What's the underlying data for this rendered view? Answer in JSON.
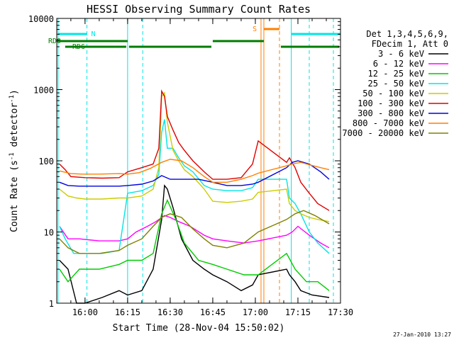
{
  "chart_data": {
    "type": "line",
    "title": "HESSI Observing Summary Count Rates",
    "xlabel": "Start Time (28-Nov-04 15:50:02)",
    "ylabel_main": "Count Rate (s",
    "ylabel_sup1": "-1",
    "ylabel_mid": " detector",
    "ylabel_sup2": "-1",
    "ylabel_end": ")",
    "yscale": "log",
    "ylim": [
      1,
      10000
    ],
    "xlim": [
      "15:50:02",
      "17:30:00"
    ],
    "x_ticks": [
      "16:00",
      "16:15",
      "16:30",
      "16:45",
      "17:00",
      "17:15",
      "17:30"
    ],
    "y_ticks": [
      "1",
      "10",
      "100",
      "1000",
      "10000"
    ],
    "legend_position": "right",
    "legend_header": [
      "Det 1,3,4,5,6,9,",
      "FDecim 1, Att 0"
    ],
    "footer_date": "27-Jan-2010 13:27",
    "flags": [
      {
        "label": "RD0",
        "color": "#007c00"
      },
      {
        "label": "RD6",
        "color": "#007c00"
      },
      {
        "label": "N",
        "color": "#00e5e5"
      },
      {
        "label": "S",
        "color": "#ff8000"
      }
    ],
    "series": [
      {
        "name": "3 - 6 keV",
        "color": "#000000",
        "x": [
          "15:51",
          "15:54",
          "15:57",
          "16:00",
          "16:06",
          "16:12",
          "16:15",
          "16:20",
          "16:24",
          "16:27",
          "16:28",
          "16:29",
          "16:31",
          "16:34",
          "16:38",
          "16:42",
          "16:45",
          "16:50",
          "16:55",
          "16:59",
          "17:01",
          "17:11",
          "17:12",
          "17:14",
          "17:16",
          "17:20",
          "17:26"
        ],
        "y": [
          4,
          3,
          1,
          1,
          1.2,
          1.5,
          1.3,
          1.5,
          3,
          15,
          45,
          40,
          22,
          8,
          4,
          3,
          2.5,
          2,
          1.5,
          1.8,
          2.5,
          3,
          2.5,
          2,
          1.5,
          1.3,
          1.2
        ]
      },
      {
        "name": "6 - 12 keV",
        "color": "#ff00ff",
        "x": [
          "15:51",
          "15:54",
          "15:58",
          "16:05",
          "16:12",
          "16:15",
          "16:18",
          "16:22",
          "16:25",
          "16:28",
          "16:30",
          "16:33",
          "16:37",
          "16:42",
          "16:45",
          "16:50",
          "16:56",
          "17:01",
          "17:11",
          "17:13",
          "17:15",
          "17:19",
          "17:23",
          "17:26"
        ],
        "y": [
          12,
          8,
          8,
          7.5,
          7.5,
          8,
          10,
          12,
          14,
          17,
          16,
          14,
          12,
          9,
          8,
          7.5,
          7,
          7.5,
          9,
          10,
          12,
          9,
          7,
          6
        ]
      },
      {
        "name": "12 - 25 keV",
        "color": "#00cc00",
        "x": [
          "15:51",
          "15:54",
          "15:58",
          "16:05",
          "16:12",
          "16:15",
          "16:20",
          "16:24",
          "16:27",
          "16:29",
          "16:32",
          "16:35",
          "16:40",
          "16:45",
          "16:50",
          "16:56",
          "17:01",
          "17:11",
          "17:14",
          "17:18",
          "17:22",
          "17:26"
        ],
        "y": [
          3,
          2,
          3,
          3,
          3.5,
          4,
          4,
          5,
          18,
          28,
          15,
          7,
          4,
          3.5,
          3,
          2.5,
          2.5,
          5,
          3,
          2,
          2,
          1.5
        ]
      },
      {
        "name": "25 - 50 keV",
        "color": "#00e5e5",
        "x": [
          "15:51",
          "15:53",
          "15:56",
          "16:00",
          "16:06",
          "16:12",
          "16:15",
          "16:20",
          "16:24",
          "16:26",
          "16:27",
          "16:28",
          "16:29",
          "16:31",
          "16:33",
          "16:35",
          "16:38",
          "16:42",
          "16:45",
          "16:50",
          "16:55",
          "16:59",
          "17:01",
          "17:11",
          "17:12",
          "17:14",
          "17:16",
          "17:19",
          "17:22",
          "17:26"
        ],
        "y": [
          12,
          8,
          5,
          5,
          5,
          5.5,
          35,
          38,
          45,
          65,
          250,
          380,
          150,
          150,
          110,
          85,
          70,
          45,
          40,
          38,
          38,
          42,
          55,
          55,
          30,
          25,
          18,
          10,
          7,
          5
        ]
      },
      {
        "name": "50 - 100 keV",
        "color": "#cccc00",
        "x": [
          "15:51",
          "15:54",
          "15:57",
          "16:00",
          "16:06",
          "16:12",
          "16:15",
          "16:20",
          "16:24",
          "16:26",
          "16:27",
          "16:28",
          "16:29",
          "16:31",
          "16:33",
          "16:35",
          "16:38",
          "16:42",
          "16:45",
          "16:50",
          "16:55",
          "16:59",
          "17:01",
          "17:11",
          "17:12",
          "17:14",
          "17:16",
          "17:19",
          "17:22",
          "17:26"
        ],
        "y": [
          40,
          32,
          30,
          29,
          29,
          30,
          30,
          32,
          40,
          80,
          800,
          900,
          350,
          140,
          100,
          75,
          60,
          40,
          27,
          26,
          27,
          29,
          36,
          40,
          25,
          20,
          18,
          16,
          15,
          14
        ]
      },
      {
        "name": "100 - 300 keV",
        "color": "#e00000",
        "x": [
          "15:51",
          "15:53",
          "15:55",
          "16:00",
          "16:06",
          "16:12",
          "16:15",
          "16:20",
          "16:24",
          "16:26",
          "16:27",
          "16:28",
          "16:29",
          "16:31",
          "16:33",
          "16:35",
          "16:38",
          "16:42",
          "16:45",
          "16:50",
          "16:55",
          "16:59",
          "17:01",
          "17:11",
          "17:12",
          "17:14",
          "17:16",
          "17:19",
          "17:22",
          "17:26"
        ],
        "y": [
          90,
          75,
          60,
          58,
          57,
          58,
          70,
          80,
          90,
          150,
          950,
          800,
          420,
          270,
          180,
          140,
          100,
          70,
          55,
          55,
          58,
          90,
          190,
          95,
          110,
          80,
          50,
          35,
          25,
          20
        ]
      },
      {
        "name": "300 - 800 keV",
        "color": "#0000e0",
        "x": [
          "15:51",
          "15:54",
          "15:58",
          "16:00",
          "16:06",
          "16:12",
          "16:15",
          "16:20",
          "16:24",
          "16:27",
          "16:30",
          "16:35",
          "16:40",
          "16:45",
          "16:50",
          "16:55",
          "16:59",
          "17:01",
          "17:11",
          "17:13",
          "17:15",
          "17:19",
          "17:23",
          "17:26"
        ],
        "y": [
          50,
          45,
          44,
          44,
          44,
          44,
          45,
          47,
          52,
          62,
          55,
          55,
          55,
          50,
          45,
          45,
          47,
          50,
          80,
          95,
          100,
          90,
          70,
          55
        ]
      },
      {
        "name": "800 - 7000 keV",
        "color": "#ff8000",
        "x": [
          "15:51",
          "15:55",
          "15:59",
          "16:05",
          "16:12",
          "16:15",
          "16:19",
          "16:23",
          "16:27",
          "16:30",
          "16:34",
          "16:38",
          "16:42",
          "16:45",
          "16:50",
          "16:55",
          "16:59",
          "17:01",
          "17:11",
          "17:13",
          "17:16",
          "17:19",
          "17:23",
          "17:26"
        ],
        "y": [
          72,
          66,
          65,
          65,
          66,
          65,
          68,
          78,
          95,
          105,
          100,
          80,
          60,
          50,
          50,
          55,
          62,
          67,
          85,
          90,
          95,
          88,
          80,
          75
        ]
      },
      {
        "name": "7000 - 20000 keV",
        "color": "#808000",
        "x": [
          "15:51",
          "15:54",
          "15:58",
          "16:05",
          "16:12",
          "16:15",
          "16:20",
          "16:24",
          "16:27",
          "16:30",
          "16:34",
          "16:38",
          "16:42",
          "16:45",
          "16:50",
          "16:56",
          "17:01",
          "17:11",
          "17:14",
          "17:17",
          "17:21",
          "17:26"
        ],
        "y": [
          8,
          6,
          5,
          5,
          5.5,
          6.5,
          8,
          12,
          16,
          18,
          16,
          11,
          8,
          6.5,
          6,
          7,
          10,
          15,
          18,
          20,
          17,
          13
        ]
      }
    ]
  }
}
